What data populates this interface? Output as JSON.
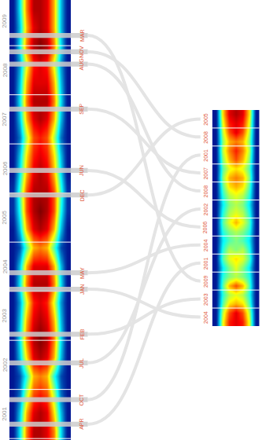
{
  "chart_data": {
    "type": "timeline_heatmap",
    "color_range": [
      0,
      1
    ],
    "left": {
      "ylim": [
        2000.97,
        2009.93
      ],
      "yticks": [
        {
          "value": 2001.5,
          "label": "2001"
        },
        {
          "value": 2002.5,
          "label": "2002"
        },
        {
          "value": 2003.5,
          "label": "2003"
        },
        {
          "value": 2004.5,
          "label": "2004"
        },
        {
          "value": 2005.5,
          "label": "2005"
        },
        {
          "value": 2006.5,
          "label": "2006"
        },
        {
          "value": 2007.5,
          "label": "2007"
        },
        {
          "value": 2008.5,
          "label": "2008"
        },
        {
          "value": 2009.5,
          "label": "2009"
        }
      ],
      "cells": [
        [
          0.05,
          0.35,
          0.75,
          0.95,
          0.95,
          0.9,
          0.75,
          0.35,
          0.05
        ],
        [
          0.05,
          0.3,
          0.7,
          0.9,
          0.95,
          0.9,
          0.65,
          0.3,
          0.05
        ],
        [
          0.05,
          0.2,
          0.55,
          0.8,
          0.85,
          0.8,
          0.55,
          0.2,
          0.05
        ],
        [
          0.05,
          0.15,
          0.4,
          0.7,
          0.75,
          0.7,
          0.4,
          0.15,
          0.05
        ],
        [
          0.05,
          0.3,
          0.65,
          0.9,
          0.95,
          0.9,
          0.7,
          0.3,
          0.05
        ],
        [
          0.05,
          0.35,
          0.75,
          0.95,
          1,
          0.95,
          0.75,
          0.35,
          0.05
        ],
        [
          0.05,
          0.3,
          0.7,
          0.9,
          0.95,
          0.9,
          0.7,
          0.3,
          0.05
        ],
        [
          0.05,
          0.25,
          0.6,
          0.85,
          0.9,
          0.85,
          0.6,
          0.25,
          0.05
        ],
        [
          0.05,
          0.35,
          0.75,
          0.95,
          0.95,
          0.95,
          0.75,
          0.35,
          0.05
        ],
        [
          0.05,
          0.3,
          0.7,
          0.9,
          0.9,
          0.9,
          0.7,
          0.3,
          0.05
        ],
        [
          0.05,
          0.15,
          0.45,
          0.7,
          0.75,
          0.7,
          0.45,
          0.15,
          0.05
        ],
        [
          0.05,
          0.3,
          0.7,
          0.9,
          0.95,
          0.9,
          0.7,
          0.3,
          0.05
        ],
        [
          0.1,
          0.4,
          0.8,
          0.95,
          1,
          0.95,
          0.8,
          0.4,
          0.1
        ],
        [
          0.1,
          0.45,
          0.8,
          0.95,
          0.95,
          0.95,
          0.8,
          0.45,
          0.1
        ],
        [
          0.05,
          0.35,
          0.7,
          0.9,
          0.95,
          0.9,
          0.7,
          0.35,
          0.05
        ],
        [
          0.05,
          0.3,
          0.65,
          0.85,
          0.9,
          0.85,
          0.65,
          0.3,
          0.05
        ],
        [
          0.05,
          0.2,
          0.55,
          0.8,
          0.85,
          0.8,
          0.55,
          0.2,
          0.05
        ],
        [
          0.05,
          0.3,
          0.7,
          0.9,
          0.95,
          0.9,
          0.7,
          0.3,
          0.05
        ],
        [
          0.05,
          0.35,
          0.75,
          0.95,
          0.95,
          0.95,
          0.75,
          0.35,
          0.05
        ],
        [
          0.05,
          0.3,
          0.7,
          0.9,
          0.9,
          0.9,
          0.7,
          0.3,
          0.05
        ],
        [
          0.05,
          0.25,
          0.6,
          0.85,
          0.9,
          0.85,
          0.6,
          0.25,
          0.05
        ],
        [
          0.05,
          0.35,
          0.75,
          0.95,
          1,
          0.95,
          0.75,
          0.35,
          0.05
        ],
        [
          0.05,
          0.3,
          0.7,
          0.9,
          0.95,
          0.9,
          0.7,
          0.3,
          0.05
        ],
        [
          0.05,
          0.35,
          0.75,
          0.95,
          0.95,
          0.9,
          0.7,
          0.3,
          0.05
        ]
      ]
    },
    "right": {
      "ylim": [
        0.5,
        12.5
      ],
      "cells": [
        [
          0.05,
          0.6,
          0.85,
          0.9,
          0.85,
          0.6,
          0.05
        ],
        [
          0.05,
          0.55,
          0.8,
          0.9,
          0.8,
          0.55,
          0.05
        ],
        [
          0.05,
          0.45,
          0.65,
          0.7,
          0.65,
          0.45,
          0.05
        ],
        [
          0.05,
          0.4,
          0.55,
          0.6,
          0.55,
          0.4,
          0.05
        ],
        [
          0.05,
          0.45,
          0.7,
          0.8,
          0.7,
          0.45,
          0.05
        ],
        [
          0.05,
          0.4,
          0.5,
          0.55,
          0.5,
          0.4,
          0.05
        ],
        [
          0.05,
          0.35,
          0.5,
          0.6,
          0.5,
          0.35,
          0.05
        ],
        [
          0.05,
          0.45,
          0.6,
          0.65,
          0.6,
          0.45,
          0.05
        ],
        [
          0.05,
          0.4,
          0.55,
          0.5,
          0.55,
          0.4,
          0.05
        ],
        [
          0.05,
          0.35,
          0.45,
          0.5,
          0.45,
          0.35,
          0.05
        ],
        [
          0.05,
          0.4,
          0.5,
          0.55,
          0.5,
          0.4,
          0.05
        ],
        [
          0.05,
          0.45,
          0.6,
          0.7,
          0.6,
          0.45,
          0.05
        ],
        [
          0.05,
          0.4,
          0.55,
          0.6,
          0.55,
          0.4,
          0.05
        ],
        [
          0.05,
          0.35,
          0.5,
          0.55,
          0.5,
          0.35,
          0.05
        ],
        [
          0.05,
          0.4,
          0.55,
          0.6,
          0.55,
          0.4,
          0.05
        ],
        [
          0.05,
          0.45,
          0.65,
          0.7,
          0.65,
          0.45,
          0.05
        ],
        [
          0.05,
          0.5,
          0.7,
          0.75,
          0.7,
          0.5,
          0.05
        ],
        [
          0.05,
          0.45,
          0.6,
          0.65,
          0.6,
          0.45,
          0.05
        ],
        [
          0.05,
          0.5,
          0.7,
          0.8,
          0.7,
          0.5,
          0.05
        ],
        [
          0.05,
          0.55,
          0.75,
          0.85,
          0.75,
          0.55,
          0.05
        ],
        [
          0.05,
          0.5,
          0.7,
          0.75,
          0.7,
          0.5,
          0.05
        ],
        [
          0.05,
          0.55,
          0.8,
          0.9,
          0.8,
          0.55,
          0.05
        ],
        [
          0.05,
          0.6,
          0.85,
          0.9,
          0.85,
          0.6,
          0.05
        ],
        [
          0.05,
          0.65,
          0.9,
          0.95,
          0.9,
          0.65,
          0.05
        ]
      ]
    },
    "segments": [
      {
        "label": "MAR",
        "year": 2009,
        "month": 3
      },
      {
        "label": "NOV",
        "year": 2008,
        "month": 11
      },
      {
        "label": "AUG",
        "year": 2008,
        "month": 8
      },
      {
        "label": "SEP",
        "year": 2007,
        "month": 9
      },
      {
        "label": "JUN",
        "year": 2006,
        "month": 6
      },
      {
        "label": "DEC",
        "year": 2005,
        "month": 12
      },
      {
        "label": "MAY",
        "year": 2004,
        "month": 5
      },
      {
        "label": "JAN",
        "year": 2004,
        "month": 1
      },
      {
        "label": "FEB",
        "year": 2003,
        "month": 2
      },
      {
        "label": "JUL",
        "year": 2002,
        "month": 7
      },
      {
        "label": "OCT",
        "year": 2001,
        "month": 10
      },
      {
        "label": "APR",
        "year": 2001,
        "month": 4
      }
    ]
  }
}
